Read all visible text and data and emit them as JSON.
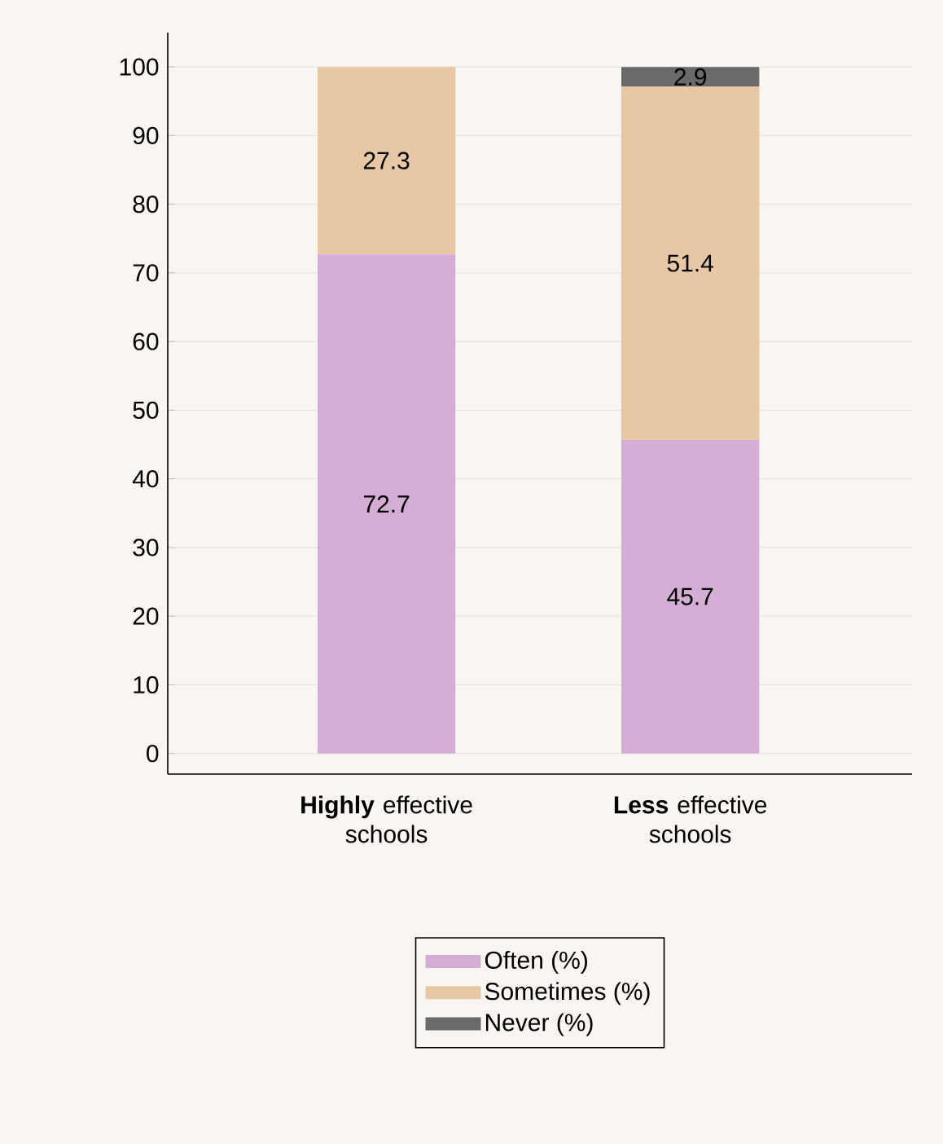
{
  "chart_data": {
    "type": "bar",
    "stacked": true,
    "categories": [
      "**Highly** effective schools",
      "**Less** effective schools"
    ],
    "series": [
      {
        "name": "Often (%)",
        "color": "#d4aed4",
        "values": [
          72.7,
          45.7
        ]
      },
      {
        "name": "Sometimes (%)",
        "color": "#e8c8a4",
        "values": [
          27.3,
          51.4
        ]
      },
      {
        "name": "Never (%)",
        "color": "#6a6a6a",
        "values": [
          null,
          2.9
        ]
      }
    ],
    "ylim": [
      -3,
      105
    ],
    "yticks": [
      0,
      10,
      20,
      30,
      40,
      50,
      60,
      70,
      80,
      90,
      100
    ],
    "grid": "y",
    "legend": "bottom",
    "data_labels": true
  }
}
